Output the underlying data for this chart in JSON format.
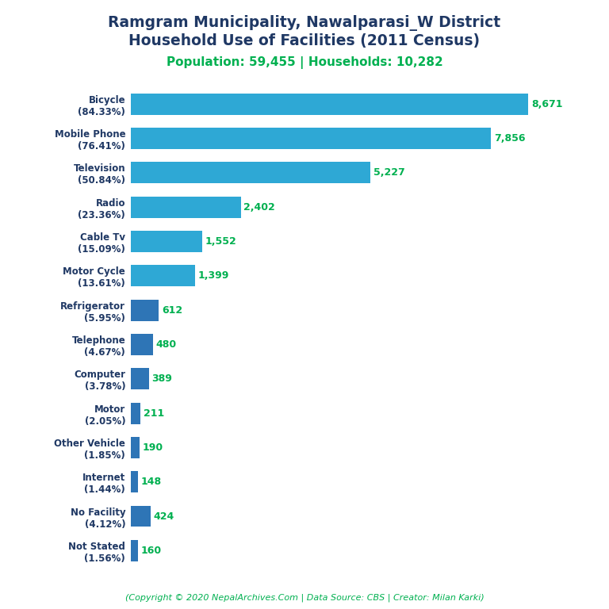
{
  "title_line1": "Ramgram Municipality, Nawalparasi_W District",
  "title_line2": "Household Use of Facilities (2011 Census)",
  "subtitle": "Population: 59,455 | Households: 10,282",
  "footer": "(Copyright © 2020 NepalArchives.Com | Data Source: CBS | Creator: Milan Karki)",
  "categories": [
    "Bicycle\n(84.33%)",
    "Mobile Phone\n(76.41%)",
    "Television\n(50.84%)",
    "Radio\n(23.36%)",
    "Cable Tv\n(15.09%)",
    "Motor Cycle\n(13.61%)",
    "Refrigerator\n(5.95%)",
    "Telephone\n(4.67%)",
    "Computer\n(3.78%)",
    "Motor\n(2.05%)",
    "Other Vehicle\n(1.85%)",
    "Internet\n(1.44%)",
    "No Facility\n(4.12%)",
    "Not Stated\n(1.56%)"
  ],
  "values": [
    8671,
    7856,
    5227,
    2402,
    1552,
    1399,
    612,
    480,
    389,
    211,
    190,
    148,
    424,
    160
  ],
  "value_labels": [
    "8,671",
    "7,856",
    "5,227",
    "2,402",
    "1,552",
    "1,399",
    "612",
    "480",
    "389",
    "211",
    "190",
    "148",
    "424",
    "160"
  ],
  "bar_colors": [
    "#2ea8d5",
    "#2ea8d5",
    "#2ea8d5",
    "#2ea8d5",
    "#2ea8d5",
    "#2ea8d5",
    "#2e75b6",
    "#2e75b6",
    "#2e75b6",
    "#2e75b6",
    "#2e75b6",
    "#2e75b6",
    "#2e75b6",
    "#2e75b6"
  ],
  "title_color": "#1f3864",
  "subtitle_color": "#00b050",
  "value_color": "#00b050",
  "footer_color": "#00b050",
  "label_color": "#1f3864",
  "background_color": "#ffffff",
  "xlim": [
    0,
    9500
  ],
  "figsize": [
    7.68,
    7.68
  ],
  "dpi": 100
}
